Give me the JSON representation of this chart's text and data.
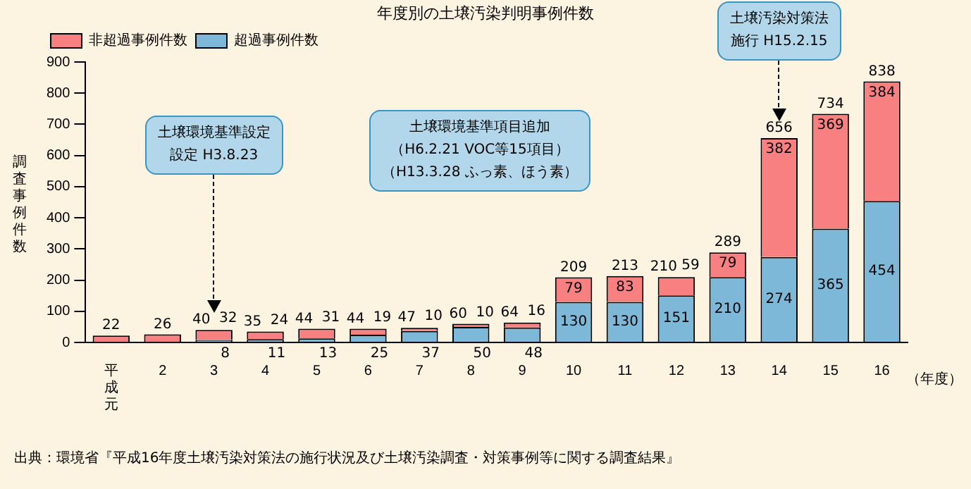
{
  "chart_data": {
    "type": "bar",
    "title": "年度別の土壌汚染判明事例件数",
    "ylabel": "調査事例件数",
    "xlabel": "（年度）",
    "categories": [
      "平成元",
      "2",
      "3",
      "4",
      "5",
      "6",
      "7",
      "8",
      "9",
      "10",
      "11",
      "12",
      "13",
      "14",
      "15",
      "16"
    ],
    "stacked": true,
    "legend": "top left",
    "grid": false,
    "ylim": [
      0,
      900
    ],
    "yticks": [
      0,
      100,
      200,
      300,
      400,
      500,
      600,
      700,
      800,
      900
    ],
    "series": [
      {
        "name": "超過事例件数",
        "color": "#7db8d8",
        "values": [
          null,
          null,
          8,
          11,
          13,
          25,
          37,
          50,
          48,
          130,
          130,
          151,
          210,
          274,
          365,
          454
        ],
        "value_labels": [
          null,
          null,
          "8",
          "11",
          "13",
          "25",
          "37",
          "50",
          "48",
          "130",
          "130",
          "151",
          "210",
          "274",
          "365",
          "454"
        ]
      },
      {
        "name": "非超過事例件数",
        "color": "#f98080",
        "values": [
          22,
          26,
          32,
          24,
          31,
          19,
          10,
          10,
          16,
          79,
          83,
          59,
          79,
          382,
          369,
          384
        ],
        "value_labels": [
          null,
          null,
          "32",
          "24",
          "31",
          "19",
          "10",
          "10",
          "16",
          "79",
          "83",
          "59",
          "79",
          "382",
          "369",
          "384"
        ]
      }
    ],
    "totals": [
      "22",
      "26",
      "40",
      "35",
      "44",
      "44",
      "47",
      "60",
      "64",
      "209",
      "213",
      "210",
      "289",
      "656",
      "734",
      "838"
    ],
    "annotations": [
      "土壌環境基準設定",
      "設定 H3.8.23",
      "土壌環境基準項目追加",
      "（H6.2.21 VOC等15項目）",
      "（H13.3.28 ふっ素、ほう素）",
      "土壌汚染対策法",
      "施行 H15.2.15",
      "出典：環境省『平成16年度土壌汚染対策法の施行状況及び土壌汚染調査・対策事例等に関する調査結果』"
    ]
  }
}
